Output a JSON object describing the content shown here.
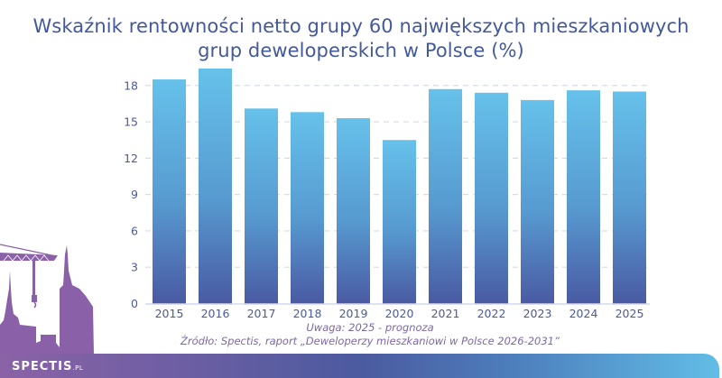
{
  "title_lines": [
    "Wskaźnik rentowności netto grupy 60 największych mieszkaniowych",
    "grup deweloperskich w Polsce (%)"
  ],
  "notes": {
    "remark": "Uwaga: 2025 - prognoza",
    "source": "Źródło: Spectis, raport „Deweloperzy mieszkaniowi w Polsce 2026-2031”"
  },
  "brand": {
    "name": "SPECTIS",
    "suffix": ".PL"
  },
  "colors": {
    "bar_top": "#66c1ea",
    "bar_bottom": "#4a5da6",
    "grid": "#d8dbe4",
    "text": "#4a5a9a",
    "skyline": "#8a60a8"
  },
  "chart_data": {
    "type": "bar",
    "title": "Wskaźnik rentowności netto grupy 60 największych mieszkaniowych grup deweloperskich w Polsce (%)",
    "xlabel": "",
    "ylabel": "",
    "categories": [
      "2015",
      "2016",
      "2017",
      "2018",
      "2019",
      "2020",
      "2021",
      "2022",
      "2023",
      "2024",
      "2025"
    ],
    "values": [
      18.5,
      19.4,
      16.1,
      15.8,
      15.3,
      13.5,
      17.7,
      17.4,
      16.8,
      17.6,
      17.5
    ],
    "ylim": [
      0,
      18
    ],
    "yticks": [
      "0",
      "3",
      "6",
      "9",
      "12",
      "15",
      "18"
    ],
    "grid": true,
    "legend": "none"
  }
}
